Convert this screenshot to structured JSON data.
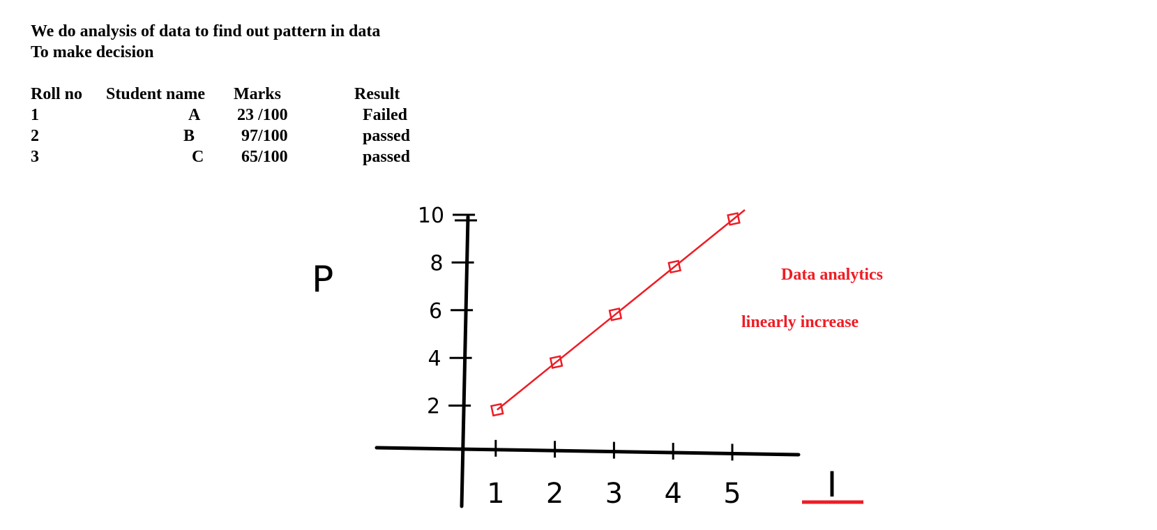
{
  "heading": {
    "line1": "We do analysis of data to find out pattern in data",
    "line2": "To make decision"
  },
  "table": {
    "headers": [
      "Roll no",
      "Student name",
      "Marks",
      "Result"
    ],
    "rows": [
      [
        "1",
        "A",
        "23 /100",
        "Failed"
      ],
      [
        "2",
        "B",
        "97/100",
        "passed"
      ],
      [
        "3",
        "C",
        "65/100",
        "passed"
      ]
    ]
  },
  "annotations": {
    "title": "Data analytics",
    "note": "linearly increase",
    "color": "#ee1c24"
  },
  "chart_data": {
    "type": "line",
    "x": [
      1,
      2,
      3,
      4,
      5
    ],
    "y": [
      2,
      4,
      6,
      8,
      10
    ],
    "x_ticks": [
      "1",
      "2",
      "3",
      "4",
      "5"
    ],
    "y_ticks": [
      "2",
      "4",
      "6",
      "8",
      "10"
    ],
    "xlabel": "I",
    "ylabel": "P",
    "series_color": "#ee1c24",
    "axis_color": "#000000",
    "markers": "square"
  }
}
